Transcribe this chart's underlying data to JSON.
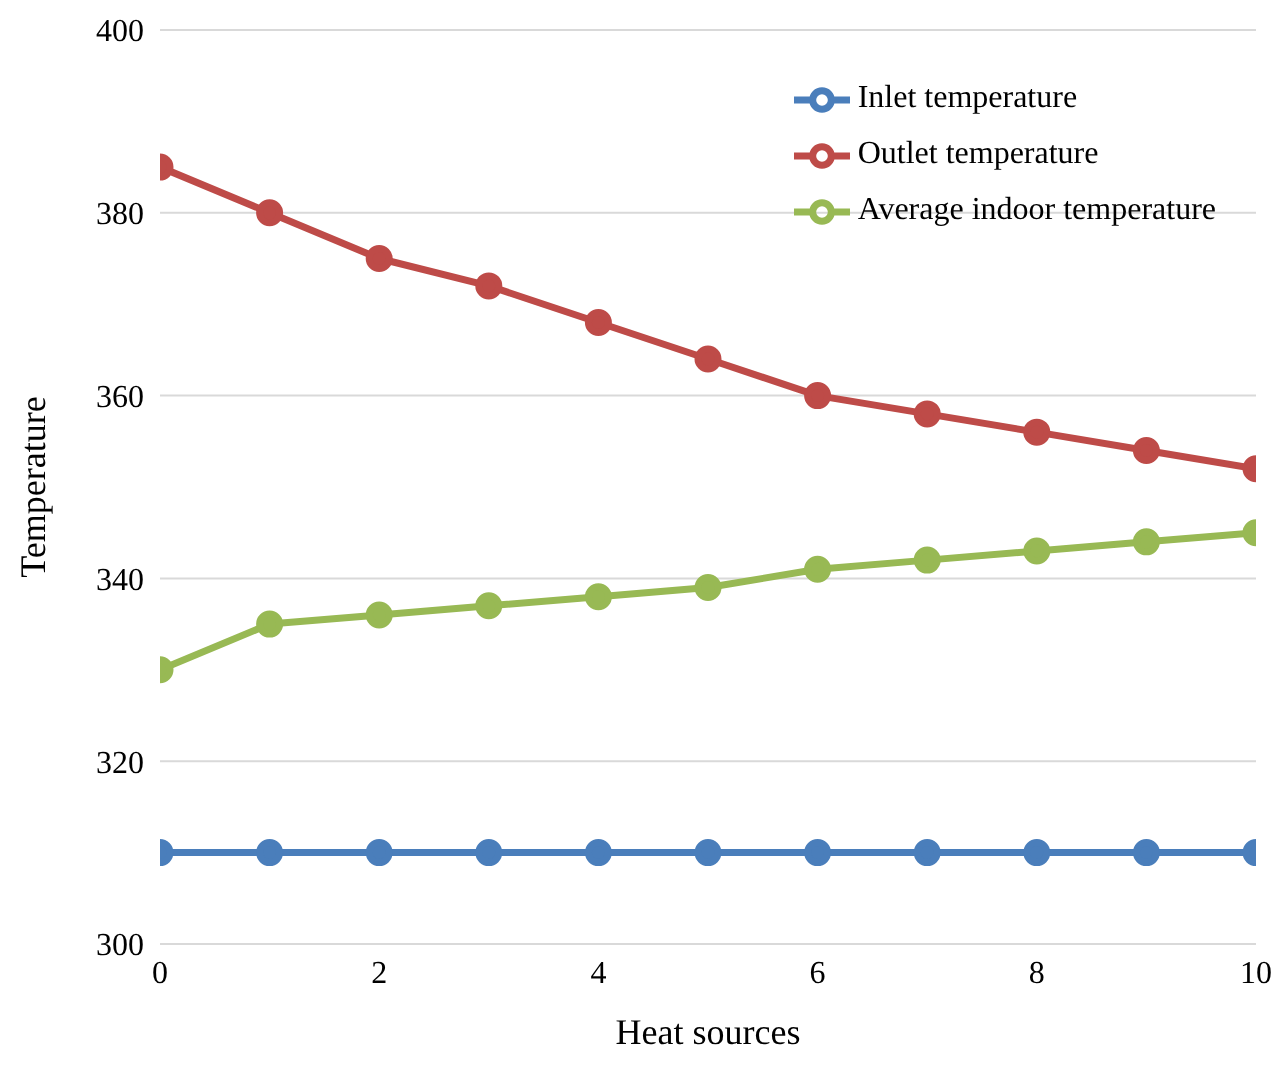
{
  "chart_data": {
    "type": "line",
    "xlabel": "Heat sources",
    "ylabel": "Temperature",
    "x": [
      0,
      1,
      2,
      3,
      4,
      5,
      6,
      7,
      8,
      9,
      10
    ],
    "series": [
      {
        "name": "Inlet temperature",
        "color": "#4a7ebb",
        "values": [
          310,
          310,
          310,
          310,
          310,
          310,
          310,
          310,
          310,
          310,
          310
        ]
      },
      {
        "name": "Outlet temperature",
        "color": "#be4b48",
        "values": [
          385,
          380,
          375,
          372,
          368,
          364,
          360,
          358,
          356,
          354,
          352
        ]
      },
      {
        "name": "Average indoor temperature",
        "color": "#98b954",
        "values": [
          330,
          335,
          336,
          337,
          338,
          339,
          341,
          342,
          343,
          344,
          345
        ]
      }
    ],
    "xlim": [
      0,
      10
    ],
    "xticks": [
      0,
      2,
      4,
      6,
      8,
      10
    ],
    "ylim": [
      300,
      400
    ],
    "yticks": [
      300,
      320,
      340,
      360,
      380,
      400
    ],
    "grid": "y",
    "legend": "top right",
    "marker": "circle",
    "line_style": "solid"
  }
}
